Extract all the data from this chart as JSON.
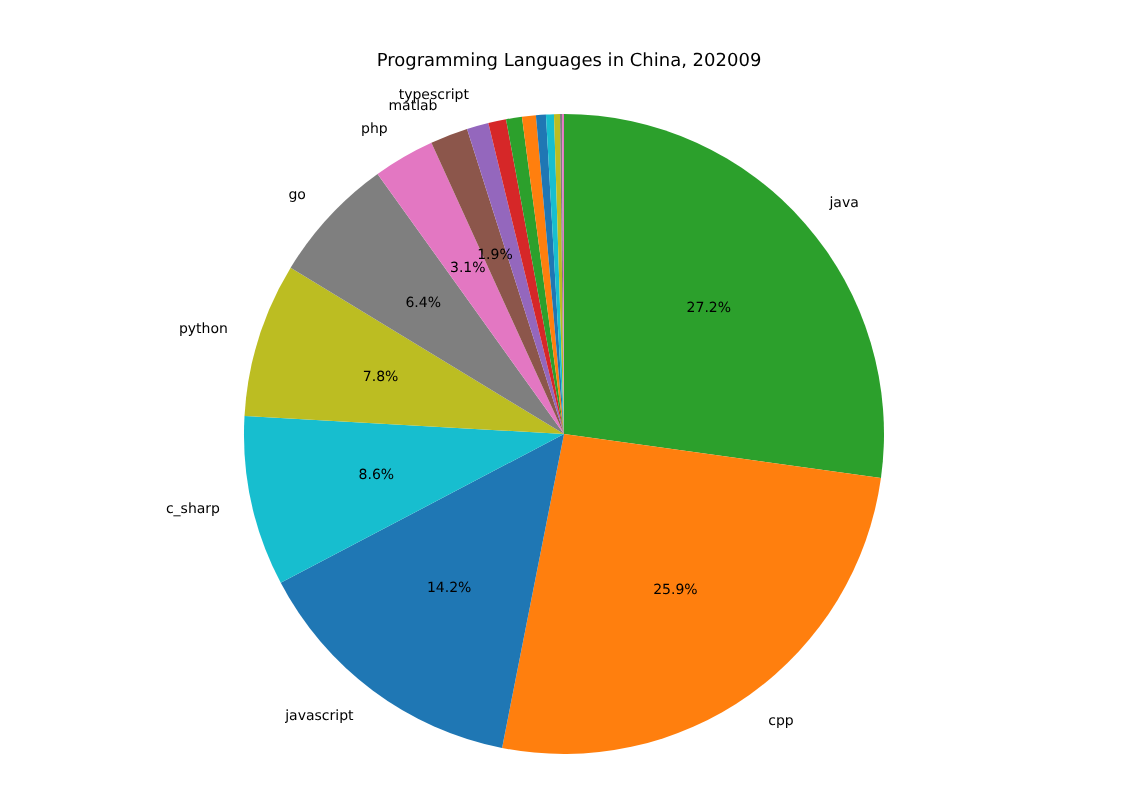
{
  "chart_data": {
    "type": "pie",
    "title": "Programming Languages in China, 202009",
    "categories": [
      "java",
      "cpp",
      "javascript",
      "c_sharp",
      "python",
      "go",
      "php",
      "matlab",
      "typescript",
      null,
      null,
      null,
      null,
      null,
      null,
      null,
      null
    ],
    "values": [
      27.2,
      25.9,
      14.2,
      8.6,
      7.8,
      6.4,
      3.1,
      1.9,
      1.1,
      0.9,
      0.8,
      0.7,
      0.5,
      0.4,
      0.3,
      0.1,
      0.1
    ],
    "colors": [
      "#2ca02c",
      "#ff7f0e",
      "#1f77b4",
      "#17becf",
      "#bcbd22",
      "#7f7f7f",
      "#e377c2",
      "#8c564b",
      "#9467bd",
      "#d62728",
      "#2ca02c",
      "#ff7f0e",
      "#1f77b4",
      "#17becf",
      "#bcbd22",
      "#7f7f7f",
      "#e377c2"
    ],
    "value_labels": [
      "27.2%",
      "25.9%",
      "14.2%",
      "8.6%",
      "7.8%",
      "6.4%",
      "3.1%",
      "1.9%",
      null,
      null,
      null,
      null,
      null,
      null,
      null,
      null,
      null
    ],
    "legend": false
  }
}
